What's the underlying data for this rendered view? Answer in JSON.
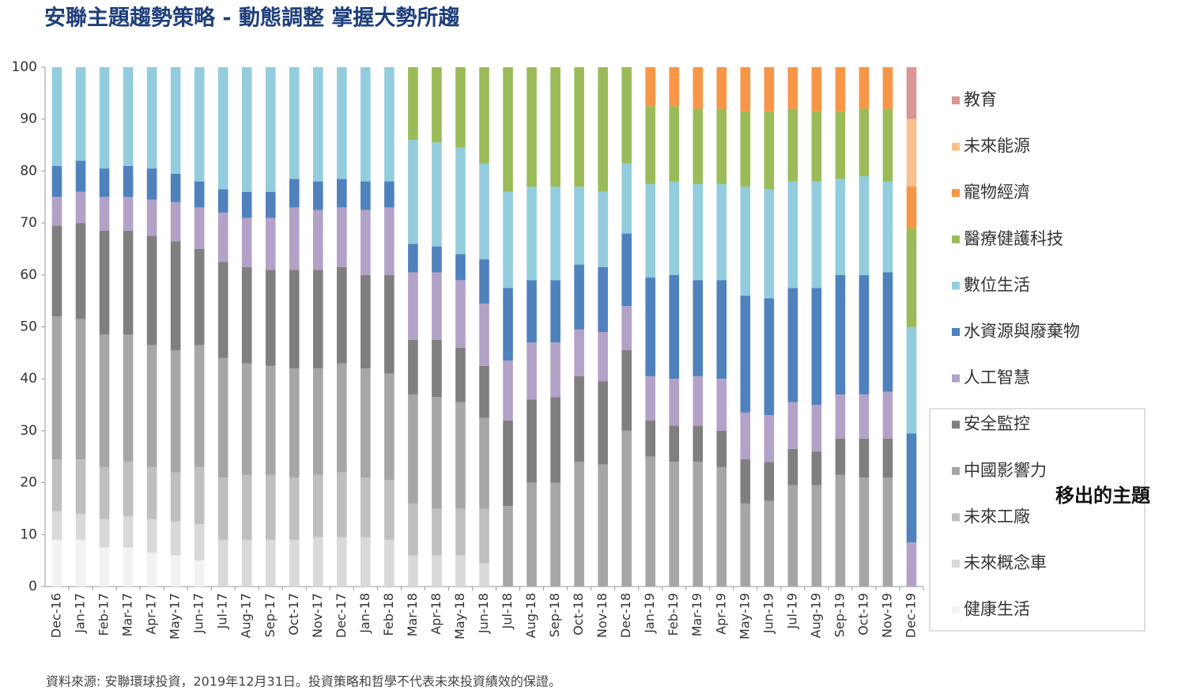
{
  "chart_data": {
    "type": "stacked_bar",
    "title": "安聯主題趨勢策略 - 動態調整  掌握大勢所趨",
    "annotation": "移出的主題",
    "note": "資料來源: 安聯環球投資，2019年12月31日。投資策略和哲學不代表未來投資績效的保證。",
    "categories": [
      "Dec-16",
      "Jan-17",
      "Feb-17",
      "Mar-17",
      "Apr-17",
      "May-17",
      "Jun-17",
      "Jul-17",
      "Aug-17",
      "Sep-17",
      "Oct-17",
      "Nov-17",
      "Dec-17",
      "Jan-18",
      "Feb-18",
      "Mar-18",
      "Apr-18",
      "May-18",
      "Jun-18",
      "Jul-18",
      "Aug-18",
      "Sep-18",
      "Oct-18",
      "Nov-18",
      "Dec-18",
      "Jan-19",
      "Feb-19",
      "Mar-19",
      "Apr-19",
      "May-19",
      "Jun-19",
      "Jul-19",
      "Aug-19",
      "Sep-19",
      "Oct-19",
      "Nov-19",
      "Dec-19"
    ],
    "ylim": [
      0,
      100
    ],
    "yticks": [
      0,
      10,
      20,
      30,
      40,
      50,
      60,
      70,
      80,
      90,
      100
    ],
    "series": [
      {
        "name": "健康生活",
        "color": "#f2f2f2",
        "values": [
          9,
          9,
          7.5,
          7.5,
          6.5,
          6,
          5,
          0,
          0,
          0,
          0,
          0,
          0,
          0,
          0,
          0,
          0,
          0,
          0,
          0,
          0,
          0,
          0,
          0,
          0,
          0,
          0,
          0,
          0,
          0,
          0,
          0,
          0,
          0,
          0,
          0,
          0
        ]
      },
      {
        "name": "未來概念車",
        "color": "#d9d9d9",
        "values": [
          5.5,
          5,
          5.5,
          6,
          6.5,
          6.5,
          7,
          9,
          9,
          9,
          9,
          9.5,
          9.5,
          9.5,
          9,
          6,
          6,
          6,
          4.5,
          0,
          0,
          0,
          0,
          0,
          0,
          0,
          0,
          0,
          0,
          0,
          0,
          0,
          0,
          0,
          0,
          0,
          0
        ]
      },
      {
        "name": "未來工廠",
        "color": "#bfbfbf",
        "values": [
          10,
          10.5,
          10,
          10.5,
          10,
          9.5,
          11,
          12,
          12.5,
          12.5,
          12,
          12,
          12.5,
          11.5,
          11.5,
          10,
          9,
          9,
          10.5,
          0,
          0,
          0,
          0,
          0,
          0,
          0,
          0,
          0,
          0,
          0,
          0,
          0,
          0,
          0,
          0,
          0,
          0
        ]
      },
      {
        "name": "中國影響力",
        "color": "#a6a6a6",
        "values": [
          27.5,
          27,
          25.5,
          24.5,
          23.5,
          23.5,
          23.5,
          23,
          21.5,
          21,
          21,
          20.5,
          21,
          21,
          20.5,
          21,
          21.5,
          20.5,
          17.5,
          15.5,
          20,
          20,
          24,
          23.5,
          30,
          25,
          24,
          24,
          23,
          16,
          16.5,
          19.5,
          19.5,
          21.5,
          21,
          21,
          0
        ]
      },
      {
        "name": "安全監控",
        "color": "#7f7f7f",
        "values": [
          17.5,
          18.5,
          20,
          20,
          21,
          21,
          18.5,
          18.5,
          18.5,
          18.5,
          19,
          19,
          18.5,
          18,
          19,
          10.5,
          11,
          10.5,
          10,
          16.5,
          16,
          16.5,
          16.5,
          16,
          15.5,
          7,
          7,
          7,
          7,
          8.5,
          7.5,
          7,
          6.5,
          7,
          7.5,
          7.5,
          0
        ]
      },
      {
        "name": "人工智慧",
        "color": "#b3a2c7",
        "values": [
          5.5,
          6,
          6.5,
          6.5,
          7,
          7.5,
          8,
          9.5,
          9.5,
          10,
          12,
          11.5,
          11.5,
          12.5,
          13,
          13,
          13,
          13,
          12,
          11.5,
          11,
          10.5,
          9,
          9.5,
          8.5,
          8.5,
          9,
          9.5,
          10,
          9,
          9,
          9,
          9,
          8.5,
          8.5,
          9,
          8.5
        ]
      },
      {
        "name": "水資源與廢棄物",
        "color": "#4f81bd",
        "values": [
          6,
          6,
          5.5,
          6,
          6,
          5.5,
          5,
          4.5,
          5,
          5,
          5.5,
          5.5,
          5.5,
          5.5,
          5,
          5.5,
          5,
          5,
          8.5,
          14,
          12,
          12,
          12.5,
          12.5,
          14,
          19,
          20,
          18.5,
          19,
          22.5,
          22.5,
          22,
          22.5,
          23,
          23,
          23,
          21
        ]
      },
      {
        "name": "數位生活",
        "color": "#93cddd",
        "values": [
          19,
          18,
          19.5,
          19,
          19.5,
          20.5,
          22,
          23.5,
          24,
          24,
          21.5,
          22,
          21.5,
          22,
          22,
          20,
          20,
          20.5,
          18.5,
          18.5,
          18,
          18,
          15,
          14.5,
          13.5,
          18,
          18,
          18.5,
          18.5,
          21,
          21,
          20.5,
          20.5,
          18.5,
          19,
          17.5,
          20.5
        ]
      },
      {
        "name": "醫療健護科技",
        "color": "#9bbb59",
        "values": [
          0,
          0,
          0,
          0,
          0,
          0,
          0,
          0,
          0,
          0,
          0,
          0,
          0,
          0,
          0,
          14,
          14.5,
          15.5,
          18.5,
          24,
          23,
          23,
          23,
          24,
          18.5,
          15,
          14.5,
          14.5,
          14.5,
          14.5,
          15,
          14,
          13.5,
          13,
          13,
          14,
          19
        ]
      },
      {
        "name": "寵物經濟",
        "color": "#f79646",
        "values": [
          0,
          0,
          0,
          0,
          0,
          0,
          0,
          0,
          0,
          0,
          0,
          0,
          0,
          0,
          0,
          0,
          0,
          0,
          0,
          0,
          0,
          0,
          0,
          0,
          0,
          7.5,
          7.5,
          8,
          8,
          8.5,
          8.5,
          8,
          8.5,
          8.5,
          8,
          8,
          8
        ]
      },
      {
        "name": "未來能源",
        "color": "#fac090",
        "values": [
          0,
          0,
          0,
          0,
          0,
          0,
          0,
          0,
          0,
          0,
          0,
          0,
          0,
          0,
          0,
          0,
          0,
          0,
          0,
          0,
          0,
          0,
          0,
          0,
          0,
          0,
          0,
          0,
          0,
          0,
          0,
          0,
          0,
          0,
          0,
          0,
          13
        ]
      },
      {
        "name": "教育",
        "color": "#d99694",
        "values": [
          0,
          0,
          0,
          0,
          0,
          0,
          0,
          0,
          0,
          0,
          0,
          0,
          0,
          0,
          0,
          0,
          0,
          0,
          0,
          0,
          0,
          0,
          0,
          0,
          0,
          0,
          0,
          0,
          0,
          0,
          0,
          0,
          0,
          0,
          0,
          0,
          10
        ]
      }
    ]
  }
}
